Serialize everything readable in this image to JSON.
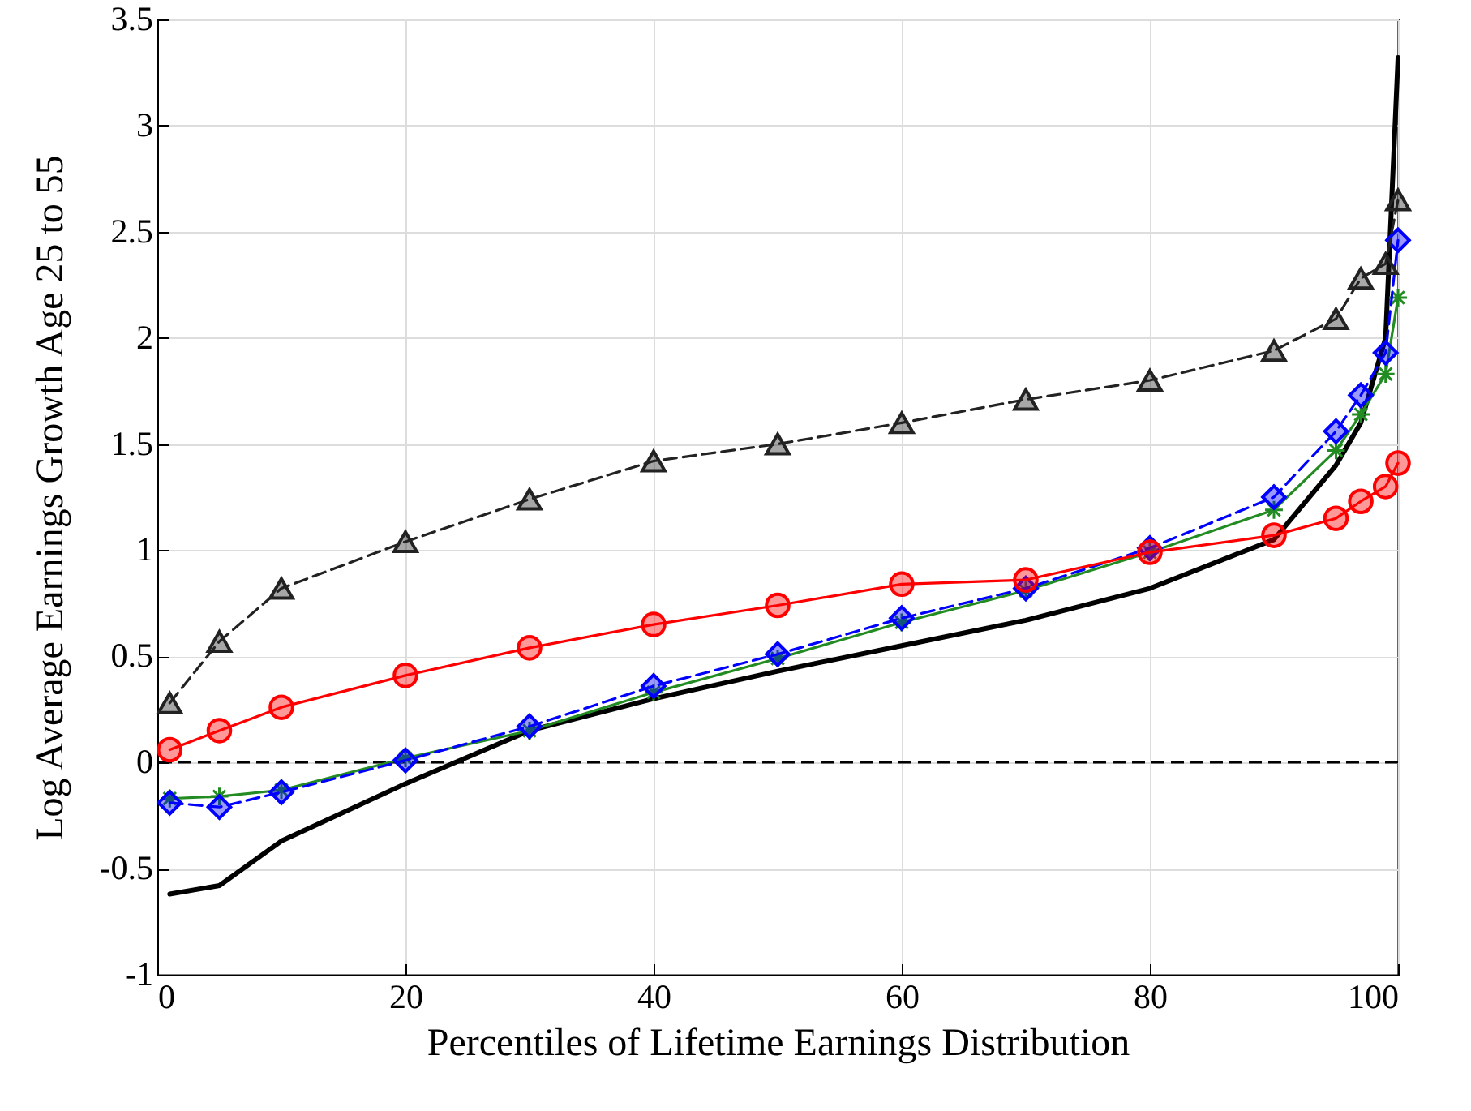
{
  "chart_data": {
    "type": "line",
    "xlabel": "Percentiles of Lifetime Earnings Distribution",
    "ylabel": "Log Average Earnings Growth Age 25 to 55",
    "x": [
      1,
      5,
      10,
      20,
      30,
      40,
      50,
      60,
      70,
      80,
      90,
      95,
      97,
      99,
      100
    ],
    "xlim": [
      0,
      100
    ],
    "xticks": [
      0,
      20,
      40,
      60,
      80,
      100
    ],
    "ylim": [
      -1,
      3.5
    ],
    "yticks": [
      -1,
      -0.5,
      0,
      0.5,
      1,
      1.5,
      2,
      2.5,
      3,
      3.5
    ],
    "grid": true,
    "ref_lines": [
      {
        "axis": "y",
        "value": 0,
        "color": "#000000",
        "line_style": "dashed"
      }
    ],
    "series": [
      {
        "color": "#000000",
        "marker": "none",
        "line_style": "solid",
        "values": [
          -0.62,
          -0.58,
          -0.37,
          -0.1,
          0.15,
          0.3,
          0.43,
          0.55,
          0.67,
          0.82,
          1.05,
          1.4,
          1.6,
          2.0,
          3.32
        ]
      },
      {
        "color": "#228b22",
        "marker": "cross",
        "line_style": "solid",
        "values": [
          -0.17,
          -0.16,
          -0.13,
          0.02,
          0.15,
          0.33,
          0.49,
          0.66,
          0.81,
          0.99,
          1.19,
          1.47,
          1.64,
          1.83,
          2.19
        ]
      },
      {
        "color": "#0000ff",
        "marker": "diamond",
        "line_style": "dashed",
        "values": [
          -0.19,
          -0.21,
          -0.14,
          0.01,
          0.17,
          0.36,
          0.51,
          0.68,
          0.82,
          1.01,
          1.25,
          1.56,
          1.73,
          1.93,
          2.46
        ]
      },
      {
        "color": "#ff0000",
        "marker": "circle",
        "line_style": "solid",
        "values": [
          0.06,
          0.15,
          0.26,
          0.41,
          0.54,
          0.65,
          0.74,
          0.84,
          0.86,
          0.99,
          1.07,
          1.15,
          1.23,
          1.3,
          1.41
        ]
      },
      {
        "color": "#222222",
        "marker": "triangle",
        "line_style": "dashed",
        "values": [
          0.28,
          0.57,
          0.82,
          1.04,
          1.24,
          1.42,
          1.5,
          1.6,
          1.71,
          1.8,
          1.94,
          2.09,
          2.28,
          2.35,
          2.65
        ]
      }
    ]
  }
}
